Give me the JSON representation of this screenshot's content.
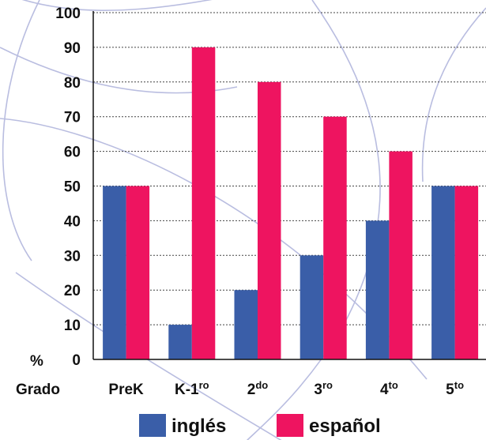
{
  "chart_data": {
    "type": "bar",
    "categories": [
      {
        "base": "PreK",
        "sup": ""
      },
      {
        "base": "K-1",
        "sup": "ro"
      },
      {
        "base": "2",
        "sup": "do"
      },
      {
        "base": "3",
        "sup": "ro"
      },
      {
        "base": "4",
        "sup": "to"
      },
      {
        "base": "5",
        "sup": "to"
      }
    ],
    "series": [
      {
        "name": "inglés",
        "color": "#3a5ea8",
        "values": [
          50,
          10,
          20,
          30,
          40,
          50
        ]
      },
      {
        "name": "español",
        "color": "#ee1460",
        "values": [
          50,
          90,
          80,
          70,
          60,
          50
        ]
      }
    ],
    "ylim": [
      0,
      100
    ],
    "yticks": [
      0,
      10,
      20,
      30,
      40,
      50,
      60,
      70,
      80,
      90,
      100
    ],
    "ylabel": "%",
    "xlabel": "Grado",
    "grid": "horizontal dotted",
    "legend_position": "bottom"
  }
}
